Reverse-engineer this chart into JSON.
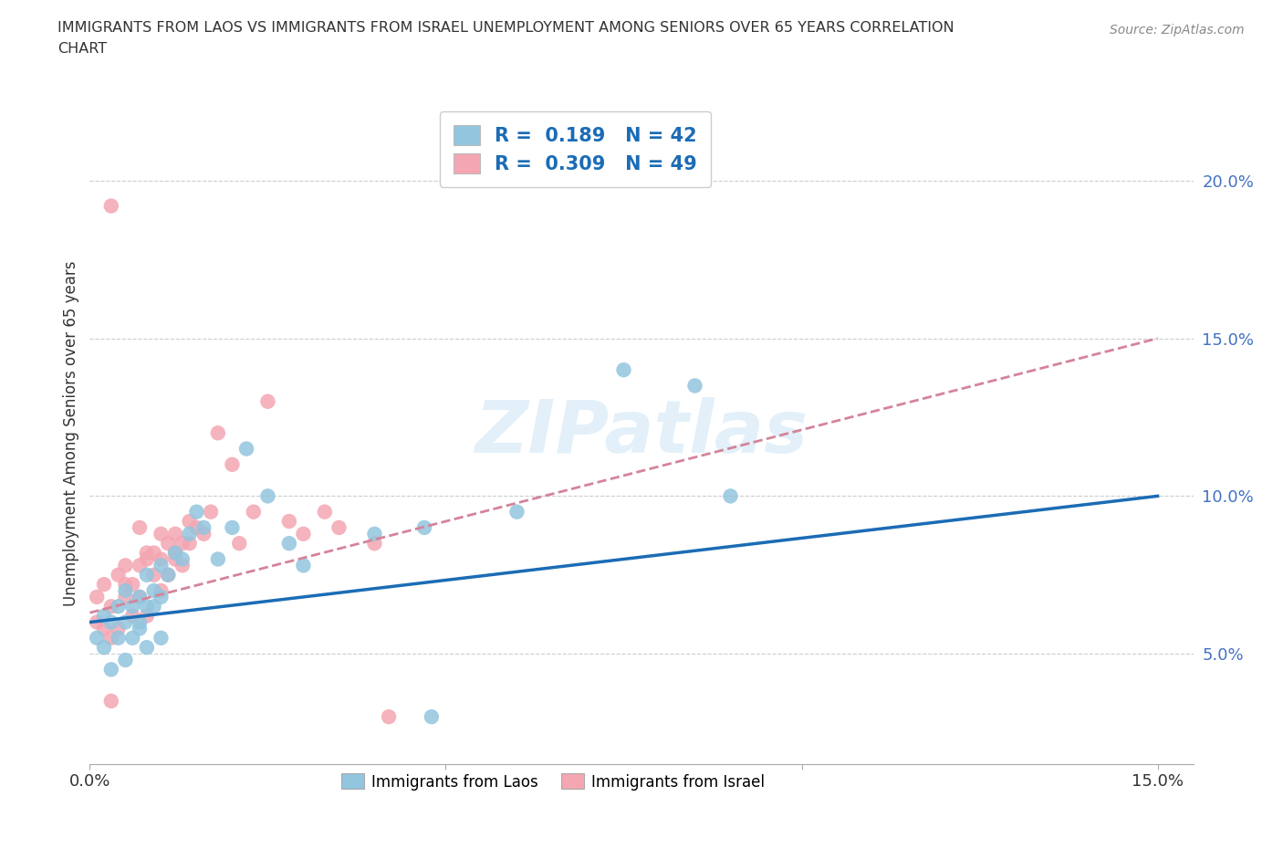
{
  "title_line1": "IMMIGRANTS FROM LAOS VS IMMIGRANTS FROM ISRAEL UNEMPLOYMENT AMONG SENIORS OVER 65 YEARS CORRELATION",
  "title_line2": "CHART",
  "source": "Source: ZipAtlas.com",
  "ylabel": "Unemployment Among Seniors over 65 years",
  "xlim": [
    0.0,
    0.155
  ],
  "ylim": [
    0.015,
    0.225
  ],
  "xticks": [
    0.0,
    0.05,
    0.1,
    0.15
  ],
  "xtick_labels": [
    "0.0%",
    "",
    "",
    "15.0%"
  ],
  "yticks": [
    0.05,
    0.1,
    0.15,
    0.2
  ],
  "ytick_labels": [
    "5.0%",
    "10.0%",
    "15.0%",
    "20.0%"
  ],
  "laos_color": "#92c5de",
  "israel_color": "#f4a6b2",
  "laos_line_color": "#1b6cb5",
  "israel_line_color": "#d4849a",
  "watermark": "ZIPatlas",
  "laos_line_start_y": 0.06,
  "laos_line_end_y": 0.1,
  "israel_line_start_y": 0.063,
  "israel_line_end_y": 0.15,
  "laos_x": [
    0.001,
    0.002,
    0.002,
    0.003,
    0.003,
    0.004,
    0.004,
    0.005,
    0.005,
    0.005,
    0.006,
    0.006,
    0.007,
    0.007,
    0.007,
    0.008,
    0.008,
    0.008,
    0.009,
    0.009,
    0.01,
    0.01,
    0.01,
    0.011,
    0.012,
    0.013,
    0.014,
    0.015,
    0.016,
    0.018,
    0.02,
    0.022,
    0.025,
    0.028,
    0.03,
    0.04,
    0.047,
    0.06,
    0.085,
    0.09,
    0.048,
    0.075
  ],
  "laos_y": [
    0.055,
    0.062,
    0.052,
    0.06,
    0.045,
    0.065,
    0.055,
    0.048,
    0.06,
    0.07,
    0.055,
    0.065,
    0.058,
    0.068,
    0.06,
    0.052,
    0.065,
    0.075,
    0.07,
    0.065,
    0.055,
    0.068,
    0.078,
    0.075,
    0.082,
    0.08,
    0.088,
    0.095,
    0.09,
    0.08,
    0.09,
    0.115,
    0.1,
    0.085,
    0.078,
    0.088,
    0.09,
    0.095,
    0.135,
    0.1,
    0.03,
    0.14
  ],
  "israel_x": [
    0.001,
    0.001,
    0.002,
    0.002,
    0.003,
    0.003,
    0.004,
    0.004,
    0.005,
    0.005,
    0.006,
    0.006,
    0.007,
    0.007,
    0.008,
    0.008,
    0.009,
    0.009,
    0.01,
    0.01,
    0.011,
    0.011,
    0.012,
    0.012,
    0.013,
    0.013,
    0.014,
    0.015,
    0.016,
    0.017,
    0.018,
    0.02,
    0.021,
    0.023,
    0.025,
    0.028,
    0.03,
    0.033,
    0.035,
    0.04,
    0.042,
    0.003,
    0.005,
    0.007,
    0.008,
    0.01,
    0.012,
    0.014,
    0.003
  ],
  "israel_y": [
    0.068,
    0.06,
    0.058,
    0.072,
    0.065,
    0.055,
    0.075,
    0.058,
    0.068,
    0.078,
    0.062,
    0.072,
    0.078,
    0.068,
    0.062,
    0.08,
    0.075,
    0.082,
    0.07,
    0.08,
    0.085,
    0.075,
    0.088,
    0.08,
    0.085,
    0.078,
    0.092,
    0.09,
    0.088,
    0.095,
    0.12,
    0.11,
    0.085,
    0.095,
    0.13,
    0.092,
    0.088,
    0.095,
    0.09,
    0.085,
    0.03,
    0.192,
    0.072,
    0.09,
    0.082,
    0.088,
    0.082,
    0.085,
    0.035
  ]
}
